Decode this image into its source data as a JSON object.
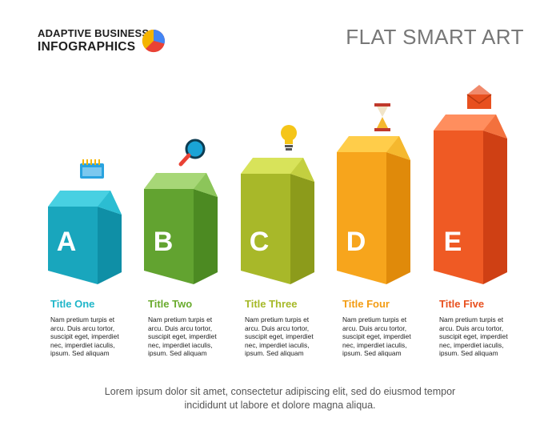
{
  "brand": {
    "line1": "ADAPTIVE BUSINESS",
    "line2": "INFOGRAPHICS",
    "logo_icon": "pie-chart-icon",
    "logo_colors": [
      "#f4b400",
      "#4285f4",
      "#e94235"
    ]
  },
  "title": "FLAT SMART ART",
  "items": [
    {
      "letter": "A",
      "title": "Title One",
      "icon": "notepad-icon",
      "color": "#1fb6c9",
      "body": "Nam pretium turpis et\narcu. Duis arcu tortor,\nsuscipit eget, imperdiet\nnec, imperdiet iaculis,\nipsum. Sed aliquam"
    },
    {
      "letter": "B",
      "title": "Title Two",
      "icon": "magnifier-icon",
      "color": "#6aab2e",
      "body": "Nam pretium turpis et\narcu. Duis arcu tortor,\nsuscipit eget, imperdiet\nnec, imperdiet iaculis,\nipsum. Sed aliquam"
    },
    {
      "letter": "C",
      "title": "Title Three",
      "icon": "lightbulb-icon",
      "color": "#a6b928",
      "body": "Nam pretium turpis et\narcu. Duis arcu tortor,\nsuscipit eget, imperdiet\nnec, imperdiet iaculis,\nipsum. Sed aliquam"
    },
    {
      "letter": "D",
      "title": "Title Four",
      "icon": "hourglass-icon",
      "color": "#f39c12",
      "body": "Nam pretium turpis et\narcu. Duis arcu tortor,\nsuscipit eget, imperdiet\nnec, imperdiet iaculis,\nipsum. Sed aliquam"
    },
    {
      "letter": "E",
      "title": "Title Five",
      "icon": "envelope-icon",
      "color": "#e8501f",
      "body": "Nam pretium turpis et\narcu. Duis arcu tortor,\nsuscipit eget, imperdiet\nnec, imperdiet iaculis,\nipsum. Sed aliquam"
    }
  ],
  "footer": "Lorem ipsum dolor sit amet, consectetur adipiscing elit, sed do eiusmod tempor\nincididunt ut labore et dolore magna aliqua."
}
